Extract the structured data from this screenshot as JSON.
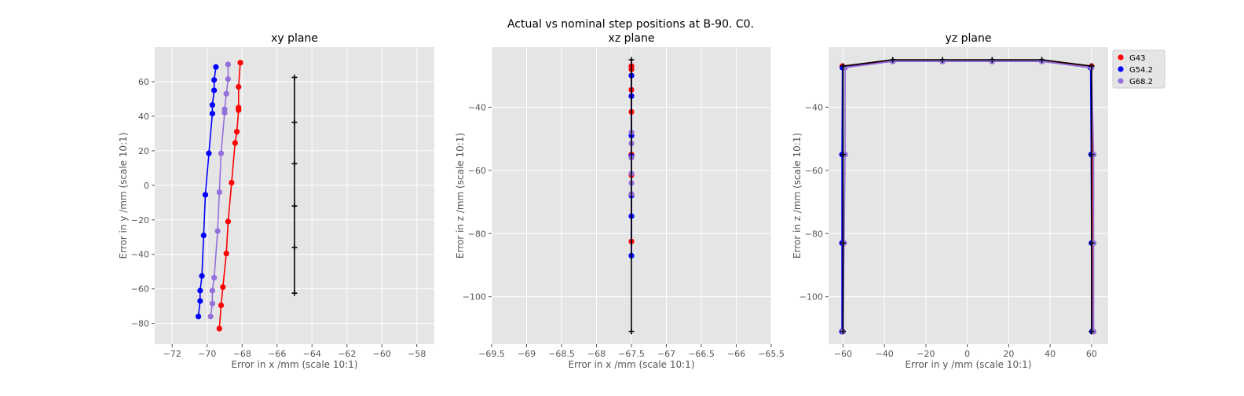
{
  "suptitle": "Actual vs nominal step positions at B-90. C0.",
  "legend": {
    "placement": "outside-right of third panel",
    "entries": [
      {
        "label": "G43",
        "color": "#ff0000"
      },
      {
        "label": "G54.2",
        "color": "#0000ff"
      },
      {
        "label": "G68.2",
        "color": "#9370db"
      }
    ]
  },
  "chart_data": [
    {
      "type": "line",
      "title": "xy plane",
      "xlabel": "Error in x /mm (scale 10:1)",
      "ylabel": "Error in y /mm (scale 10:1)",
      "xlim": [
        -73,
        -57
      ],
      "ylim": [
        -92,
        80
      ],
      "xticks": [
        -72,
        -70,
        -68,
        -66,
        -64,
        -62,
        -60,
        -58
      ],
      "yticks": [
        -80,
        -60,
        -40,
        -20,
        0,
        20,
        40,
        60
      ],
      "grid": true,
      "series": [
        {
          "name": "G43",
          "color": "#ff0000",
          "points": [
            [
              -68.1,
              71
            ],
            [
              -68.2,
              57
            ],
            [
              -68.2,
              45
            ],
            [
              -68.2,
              43.5
            ],
            [
              -68.3,
              31
            ],
            [
              -68.4,
              24.5
            ],
            [
              -68.6,
              1.5
            ],
            [
              -68.8,
              -21
            ],
            [
              -68.9,
              -39.5
            ],
            [
              -69.1,
              -59
            ],
            [
              -69.2,
              -69.5
            ],
            [
              -69.3,
              -83
            ]
          ]
        },
        {
          "name": "G54.2",
          "color": "#0000ff",
          "points": [
            [
              -69.5,
              68.5
            ],
            [
              -69.6,
              61
            ],
            [
              -69.6,
              55
            ],
            [
              -69.7,
              46.5
            ],
            [
              -69.7,
              41.5
            ],
            [
              -69.9,
              18.5
            ],
            [
              -70.1,
              -5.5
            ],
            [
              -70.2,
              -29
            ],
            [
              -70.3,
              -52.5
            ],
            [
              -70.4,
              -61
            ],
            [
              -70.4,
              -67
            ],
            [
              -70.5,
              -76
            ]
          ]
        },
        {
          "name": "G68.2",
          "color": "#9370db",
          "points": [
            [
              -68.8,
              70
            ],
            [
              -68.8,
              61.5
            ],
            [
              -68.9,
              53
            ],
            [
              -69.0,
              44
            ],
            [
              -69.0,
              42
            ],
            [
              -69.2,
              18.5
            ],
            [
              -69.3,
              -4
            ],
            [
              -69.4,
              -26.5
            ],
            [
              -69.6,
              -53.5
            ],
            [
              -69.7,
              -61
            ],
            [
              -69.7,
              -68.5
            ],
            [
              -69.8,
              -76
            ]
          ]
        },
        {
          "name": "",
          "color": "#000000",
          "marker": "plus",
          "points": [
            [
              -65,
              62.5
            ],
            [
              -65,
              36.5
            ],
            [
              -65,
              12.5
            ],
            [
              -65,
              -12
            ],
            [
              -65,
              -36
            ],
            [
              -65,
              -62.5
            ]
          ]
        }
      ]
    },
    {
      "type": "line",
      "title": "xz plane",
      "xlabel": "Error in x /mm (scale 10:1)",
      "ylabel": "Error in z /mm (scale 10:1)",
      "xlim": [
        -69.5,
        -65.5
      ],
      "ylim": [
        -115,
        -21
      ],
      "xticks": [
        -69.5,
        -69.0,
        -68.5,
        -68.0,
        -67.5,
        -67.0,
        -66.5,
        -66.0,
        -65.5
      ],
      "yticks": [
        -100,
        -80,
        -60,
        -40
      ],
      "grid": true,
      "series": [
        {
          "name": "G43",
          "color": "#ff0000",
          "points": [
            [
              -67.5,
              -27
            ],
            [
              -67.5,
              -28
            ],
            [
              -67.5,
              -34.5
            ],
            [
              -67.5,
              -41.5
            ],
            [
              -67.5,
              -55
            ],
            [
              -67.5,
              -61.5
            ],
            [
              -67.5,
              -67.5
            ],
            [
              -67.5,
              -82.5
            ]
          ]
        },
        {
          "name": "G54.2",
          "color": "#0000ff",
          "points": [
            [
              -67.5,
              -30
            ],
            [
              -67.5,
              -36.5
            ],
            [
              -67.5,
              -49
            ],
            [
              -67.5,
              -55.5
            ],
            [
              -67.5,
              -68
            ],
            [
              -67.5,
              -74.5
            ],
            [
              -67.5,
              -87
            ]
          ]
        },
        {
          "name": "G68.2",
          "color": "#9370db",
          "points": [
            [
              -67.5,
              -48
            ],
            [
              -67.5,
              -51.5
            ],
            [
              -67.5,
              -56
            ],
            [
              -67.5,
              -61
            ],
            [
              -67.5,
              -64
            ],
            [
              -67.5,
              -67.5
            ]
          ]
        },
        {
          "name": "",
          "color": "#000000",
          "marker": "plus",
          "points": [
            [
              -67.5,
              -25
            ],
            [
              -67.5,
              -111
            ]
          ]
        }
      ]
    },
    {
      "type": "line",
      "title": "yz plane",
      "xlabel": "Error in y /mm (scale 10:1)",
      "ylabel": "Error in z /mm (scale 10:1)",
      "xlim": [
        -67,
        68
      ],
      "ylim": [
        -115,
        -21
      ],
      "xticks": [
        -60,
        -40,
        -20,
        0,
        20,
        40,
        60
      ],
      "yticks": [
        -100,
        -80,
        -60,
        -40
      ],
      "grid": true,
      "series": [
        {
          "name": "G43",
          "color": "#ff0000",
          "points": [
            [
              -60.3,
              -111
            ],
            [
              -60.3,
              -83
            ],
            [
              -60.3,
              -55
            ],
            [
              -60.3,
              -27
            ],
            [
              -36,
              -25.5
            ],
            [
              -12,
              -25.5
            ],
            [
              12,
              -25.5
            ],
            [
              36,
              -25.5
            ],
            [
              60,
              -27
            ],
            [
              60.3,
              -55
            ],
            [
              60.3,
              -83
            ],
            [
              60.3,
              -111
            ]
          ]
        },
        {
          "name": "G54.2",
          "color": "#0000ff",
          "points": [
            [
              -60.5,
              -111
            ],
            [
              -60.5,
              -83
            ],
            [
              -60.5,
              -55
            ],
            [
              -60.3,
              -27.5
            ],
            [
              -36,
              -25.5
            ],
            [
              -12,
              -25.5
            ],
            [
              12,
              -25.5
            ],
            [
              36,
              -25.5
            ],
            [
              59.5,
              -27.5
            ],
            [
              59.8,
              -55
            ],
            [
              60,
              -83
            ],
            [
              60.2,
              -111
            ]
          ]
        },
        {
          "name": "G68.2",
          "color": "#9370db",
          "points": [
            [
              -60,
              -111
            ],
            [
              -59.5,
              -83
            ],
            [
              -59,
              -55
            ],
            [
              -59,
              -27.5
            ],
            [
              -36,
              -25.5
            ],
            [
              -12,
              -25.5
            ],
            [
              12,
              -25.5
            ],
            [
              36,
              -25.5
            ],
            [
              60,
              -27.5
            ],
            [
              61,
              -55
            ],
            [
              61,
              -83
            ],
            [
              61,
              -111
            ]
          ]
        },
        {
          "name": "",
          "color": "#000000",
          "marker": "plus",
          "points": [
            [
              -60,
              -111
            ],
            [
              -60,
              -83
            ],
            [
              -60,
              -55
            ],
            [
              -60,
              -27
            ],
            [
              -36,
              -25
            ],
            [
              -12,
              -25
            ],
            [
              12,
              -25
            ],
            [
              36,
              -25
            ],
            [
              60,
              -27
            ],
            [
              60,
              -55
            ],
            [
              60,
              -83
            ],
            [
              60,
              -111
            ]
          ]
        }
      ]
    }
  ]
}
